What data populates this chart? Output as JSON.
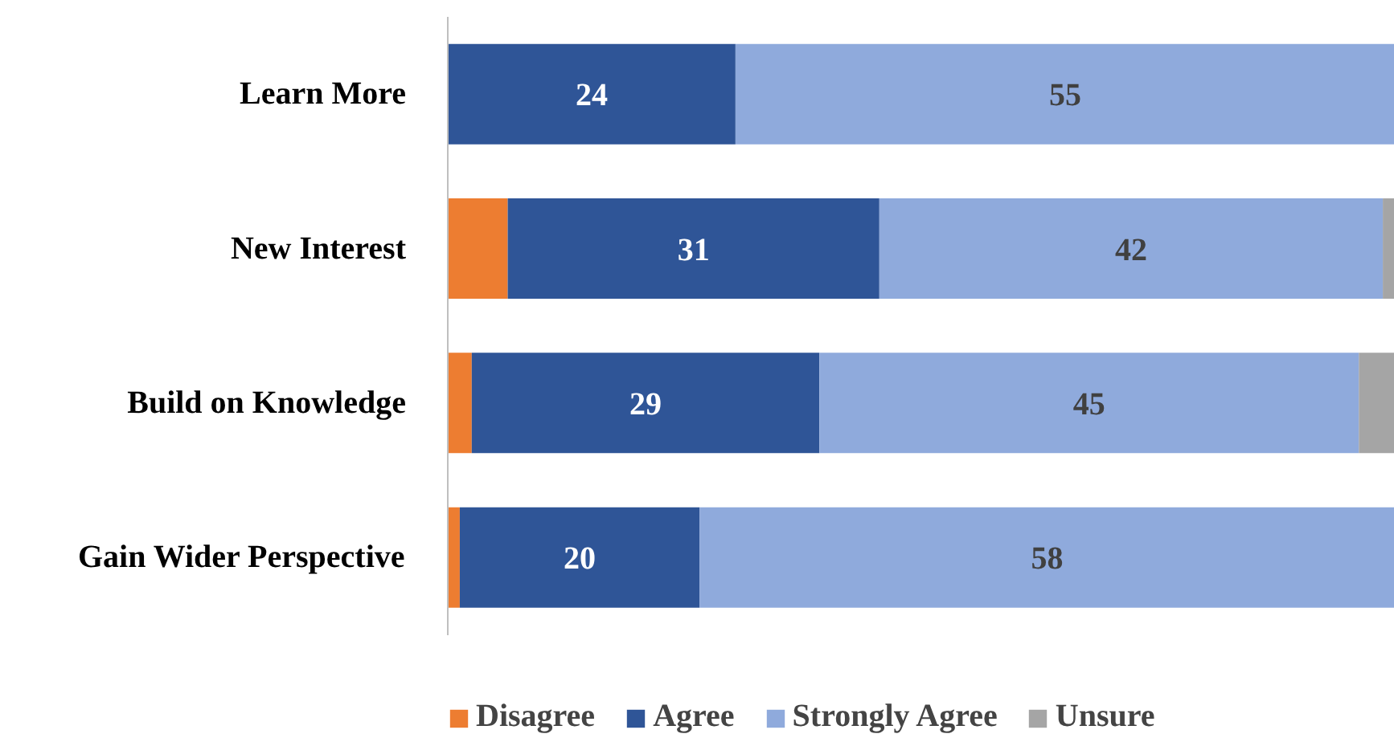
{
  "chart_data": {
    "type": "bar",
    "orientation": "horizontal",
    "stacked": true,
    "categories": [
      "Learn More",
      "New Interest",
      "Build on Knowledge",
      "Gain Wider Perspective"
    ],
    "xlim": [
      0,
      79
    ],
    "tick_labels": "y",
    "grid": false,
    "legend": "bottom",
    "series": [
      {
        "name": "Disagree",
        "color": "#ed7d31",
        "values": [
          0,
          5,
          2,
          1
        ]
      },
      {
        "name": "Agree",
        "color": "#2f5597",
        "values": [
          24,
          31,
          29,
          20
        ],
        "value_labels": [
          "24",
          "31",
          "29",
          "20"
        ]
      },
      {
        "name": "Strongly Agree",
        "color": "#8faadc",
        "values": [
          55,
          42,
          45,
          58
        ],
        "value_labels": [
          "55",
          "42",
          "45",
          "58"
        ]
      },
      {
        "name": "Unsure",
        "color": "#a5a5a5",
        "values": [
          null,
          1,
          3,
          null
        ]
      }
    ]
  }
}
